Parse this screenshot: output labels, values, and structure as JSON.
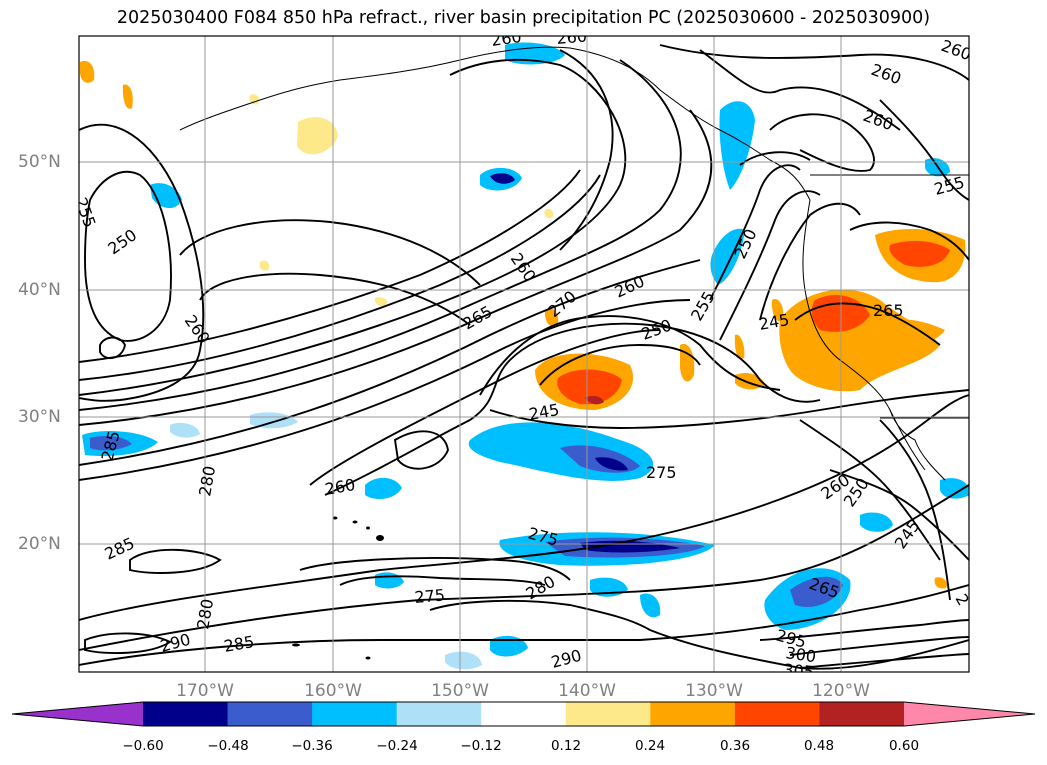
{
  "title": "2025030400 F084 850 hPa refract., river basin precipitation PC (2025030600 - 2025030900)",
  "latitude_labels": [
    "50°N",
    "40°N",
    "30°N",
    "20°N"
  ],
  "longitude_labels": [
    "170°W",
    "160°W",
    "150°W",
    "140°W",
    "130°W",
    "120°W"
  ],
  "colorbar": {
    "ticks": [
      "−0.60",
      "−0.48",
      "−0.36",
      "−0.24",
      "−0.12",
      "0.12",
      "0.24",
      "0.36",
      "0.48",
      "0.60"
    ],
    "colors": [
      "#9932cc",
      "#00008b",
      "#3a5ccc",
      "#00bfff",
      "#aee0f8",
      "#ffffff",
      "#fee98a",
      "#ffa500",
      "#ff4500",
      "#b22222",
      "#ff88aa"
    ]
  },
  "contour_labels": [
    "260",
    "260",
    "260",
    "260",
    "260",
    "255",
    "255",
    "250",
    "260",
    "260",
    "265",
    "270",
    "260",
    "250",
    "255",
    "250",
    "245",
    "265",
    "245",
    "275",
    "260",
    "260",
    "250",
    "245",
    "285",
    "280",
    "285",
    "280",
    "290",
    "285",
    "275",
    "275",
    "280",
    "290",
    "265",
    "295",
    "300",
    "305",
    "2"
  ],
  "legend_colors": {
    "coastline": "#000000",
    "gridline": "#999999",
    "axis_label": "#808080"
  }
}
